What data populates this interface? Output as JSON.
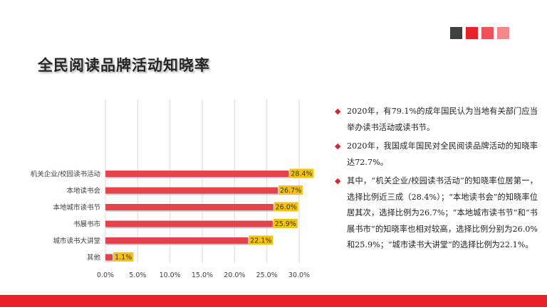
{
  "slide": {
    "title": "全民阅读品牌活动知晓率",
    "colors": {
      "accent": "#e8212b",
      "bar": "#e5434c",
      "label_bg": "#f5c20e",
      "squares": [
        "#404040",
        "#e8212b",
        "#f05058",
        "#f5878b"
      ]
    }
  },
  "bullets": [
    {
      "icon": "diamond-bullet-icon",
      "text": "2020年，有79.1%的成年国民认为当地有关部门应当举办读书活动或读书节。"
    },
    {
      "icon": "diamond-bullet-icon",
      "text": "2020年，我国成年国民对全民阅读品牌活动的知晓率达72.7%。"
    },
    {
      "icon": "diamond-bullet-icon",
      "text": "其中，“机关企业/校园读书活动”的知晓率位居第一，选择比例近三成（28.4%）；“本地读书会”的知晓率位居其次，选择比例为26.7%；“本地城市读书节”和“书展书市”的知晓率也相对较高，选择比例分别为26.0%和25.9%；“城市读书大讲堂”的选择比例为22.1%。"
    }
  ],
  "chart_data": {
    "type": "bar",
    "orientation": "horizontal",
    "categories": [
      "机关企业/校园读书活动",
      "本地读书会",
      "本地城市读书节",
      "书展书市",
      "城市读书大讲堂",
      "其他"
    ],
    "values": [
      28.4,
      26.7,
      26.0,
      25.9,
      22.1,
      1.1
    ],
    "data_labels": [
      "28.4%",
      "26.7%",
      "26.0%",
      "25.9%",
      "22.1%",
      "1.1%"
    ],
    "x_ticks": [
      "0.0%",
      "5.0%",
      "10.0%",
      "15.0%",
      "20.0%",
      "25.0%",
      "30.0%"
    ],
    "xlim": [
      0,
      30
    ],
    "grid": "vertical",
    "legend": "none",
    "title": "",
    "xlabel": "",
    "ylabel": ""
  }
}
